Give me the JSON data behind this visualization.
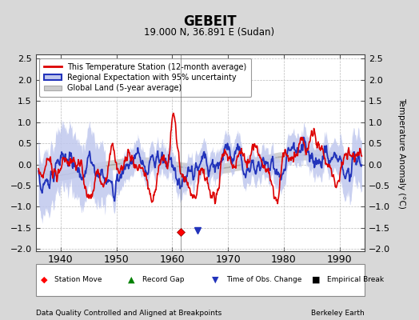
{
  "title": "GEBEIT",
  "subtitle": "19.000 N, 36.891 E (Sudan)",
  "xlabel_bottom": "Data Quality Controlled and Aligned at Breakpoints",
  "xlabel_right": "Berkeley Earth",
  "ylabel": "Temperature Anomaly (°C)",
  "xlim": [
    1935.5,
    1994.5
  ],
  "ylim": [
    -2.05,
    2.6
  ],
  "yticks": [
    -2,
    -1.5,
    -1,
    -0.5,
    0,
    0.5,
    1,
    1.5,
    2,
    2.5
  ],
  "xticks": [
    1940,
    1950,
    1960,
    1970,
    1980,
    1990
  ],
  "bg_color": "#d8d8d8",
  "plot_bg_color": "#ffffff",
  "station_move_year": 1961.5,
  "station_move_value": -1.6,
  "time_of_obs_year": 1964.5,
  "time_of_obs_value": -1.55,
  "red_line_color": "#dd0000",
  "blue_line_color": "#2233bb",
  "blue_fill_color": "#c0c8ee",
  "gray_line_color": "#aaaaaa",
  "gray_fill_color": "#cccccc",
  "grid_color": "#bbbbbb"
}
